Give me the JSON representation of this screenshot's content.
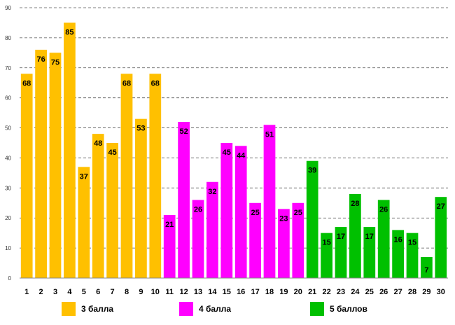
{
  "chart_data": {
    "type": "bar",
    "title": "",
    "xlabel": "",
    "ylabel": "",
    "ylim": [
      0,
      90
    ],
    "yticks": [
      0,
      10,
      20,
      30,
      40,
      50,
      60,
      70,
      80,
      90
    ],
    "grid": true,
    "categories": [
      "1",
      "2",
      "3",
      "4",
      "5",
      "6",
      "7",
      "8",
      "9",
      "10",
      "11",
      "12",
      "13",
      "14",
      "15",
      "16",
      "17",
      "18",
      "19",
      "20",
      "21",
      "22",
      "23",
      "24",
      "25",
      "26",
      "27",
      "28",
      "29",
      "30"
    ],
    "values": [
      68,
      76,
      75,
      85,
      37,
      48,
      45,
      68,
      53,
      68,
      21,
      52,
      26,
      32,
      45,
      44,
      25,
      51,
      23,
      25,
      39,
      15,
      17,
      28,
      17,
      26,
      16,
      15,
      7,
      27
    ],
    "groups": [
      0,
      0,
      0,
      0,
      0,
      0,
      0,
      0,
      0,
      0,
      1,
      1,
      1,
      1,
      1,
      1,
      1,
      1,
      1,
      1,
      2,
      2,
      2,
      2,
      2,
      2,
      2,
      2,
      2,
      2
    ],
    "series": [
      {
        "name": "3 балла",
        "color": "#FFC000"
      },
      {
        "name": "4 балла",
        "color": "#FF00FF"
      },
      {
        "name": "5 баллов",
        "color": "#00C000"
      }
    ],
    "legend_position": "bottom"
  }
}
